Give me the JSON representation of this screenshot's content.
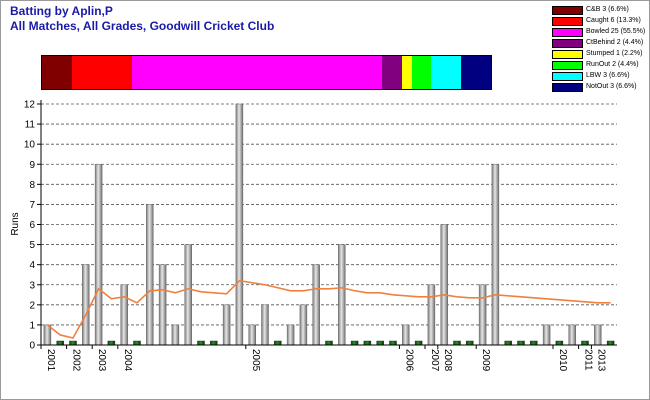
{
  "title": "Batting by Aplin,P",
  "subtitle": "All Matches, All Grades, Goodwill Cricket Club",
  "legend": [
    {
      "label": "C&B 3 (6.6%)",
      "color": "#800000",
      "pct": 6.6
    },
    {
      "label": "Caught 6 (13.3%)",
      "color": "#ff0000",
      "pct": 13.3
    },
    {
      "label": "Bowled 25 (55.5%)",
      "color": "#ff00ff",
      "pct": 55.5
    },
    {
      "label": "CtBehind 2 (4.4%)",
      "color": "#800080",
      "pct": 4.4
    },
    {
      "label": "Stumped 1 (2.2%)",
      "color": "#ffff00",
      "pct": 2.2
    },
    {
      "label": "RunOut 2 (4.4%)",
      "color": "#00ff00",
      "pct": 4.4
    },
    {
      "label": "LBW 3 (6.6%)",
      "color": "#00ffff",
      "pct": 6.6
    },
    {
      "label": "NotOut 3 (6.6%)",
      "color": "#000080",
      "pct": 6.6
    }
  ],
  "chart_data": {
    "type": "bar",
    "ylabel": "Runs",
    "ylim": [
      0,
      12
    ],
    "yticks": [
      0,
      1,
      2,
      3,
      4,
      5,
      6,
      7,
      8,
      9,
      10,
      11,
      12
    ],
    "grid": "dashed horizontal",
    "innings_runs": [
      1,
      0,
      0,
      4,
      9,
      0,
      3,
      0,
      7,
      4,
      1,
      5,
      0,
      0,
      2,
      12,
      1,
      2,
      0,
      1,
      2,
      4,
      0,
      5,
      0,
      0,
      0,
      0,
      1,
      0,
      3,
      6,
      0,
      0,
      3,
      9,
      0,
      0,
      0,
      1,
      0,
      1,
      0,
      1,
      0
    ],
    "innings_colors": [
      "gray",
      "green",
      "green",
      "gray",
      "gray",
      "green",
      "gray",
      "green",
      "gray",
      "gray",
      "gray",
      "gray",
      "green",
      "green",
      "gray",
      "gray",
      "gray",
      "gray",
      "green",
      "gray",
      "gray",
      "gray",
      "green",
      "gray",
      "green",
      "green",
      "green",
      "green",
      "gray",
      "green",
      "gray",
      "gray",
      "green",
      "green",
      "gray",
      "gray",
      "green",
      "green",
      "green",
      "gray",
      "green",
      "gray",
      "green",
      "gray",
      "green"
    ],
    "series": [
      {
        "name": "Average",
        "values": [
          1.0,
          0.5,
          0.35,
          1.5,
          2.8,
          2.3,
          2.4,
          2.1,
          2.7,
          2.75,
          2.6,
          2.8,
          2.65,
          2.6,
          2.55,
          3.2,
          3.1,
          3.0,
          2.85,
          2.7,
          2.7,
          2.8,
          2.8,
          2.85,
          2.7,
          2.6,
          2.6,
          2.5,
          2.45,
          2.4,
          2.4,
          2.5,
          2.4,
          2.35,
          2.35,
          2.5,
          2.45,
          2.4,
          2.35,
          2.3,
          2.25,
          2.2,
          2.15,
          2.1,
          2.1
        ],
        "color": "#f08040"
      }
    ],
    "x_labels": [
      {
        "label": "2001",
        "index": 0
      },
      {
        "label": "2002",
        "index": 2
      },
      {
        "label": "2003",
        "index": 4
      },
      {
        "label": "2004",
        "index": 6
      },
      {
        "label": "2005",
        "index": 16
      },
      {
        "label": "2006",
        "index": 28
      },
      {
        "label": "2007",
        "index": 30
      },
      {
        "label": "2008",
        "index": 31
      },
      {
        "label": "2009",
        "index": 34
      },
      {
        "label": "2010",
        "index": 40
      },
      {
        "label": "2011",
        "index": 42
      },
      {
        "label": "2013",
        "index": 43
      }
    ]
  }
}
